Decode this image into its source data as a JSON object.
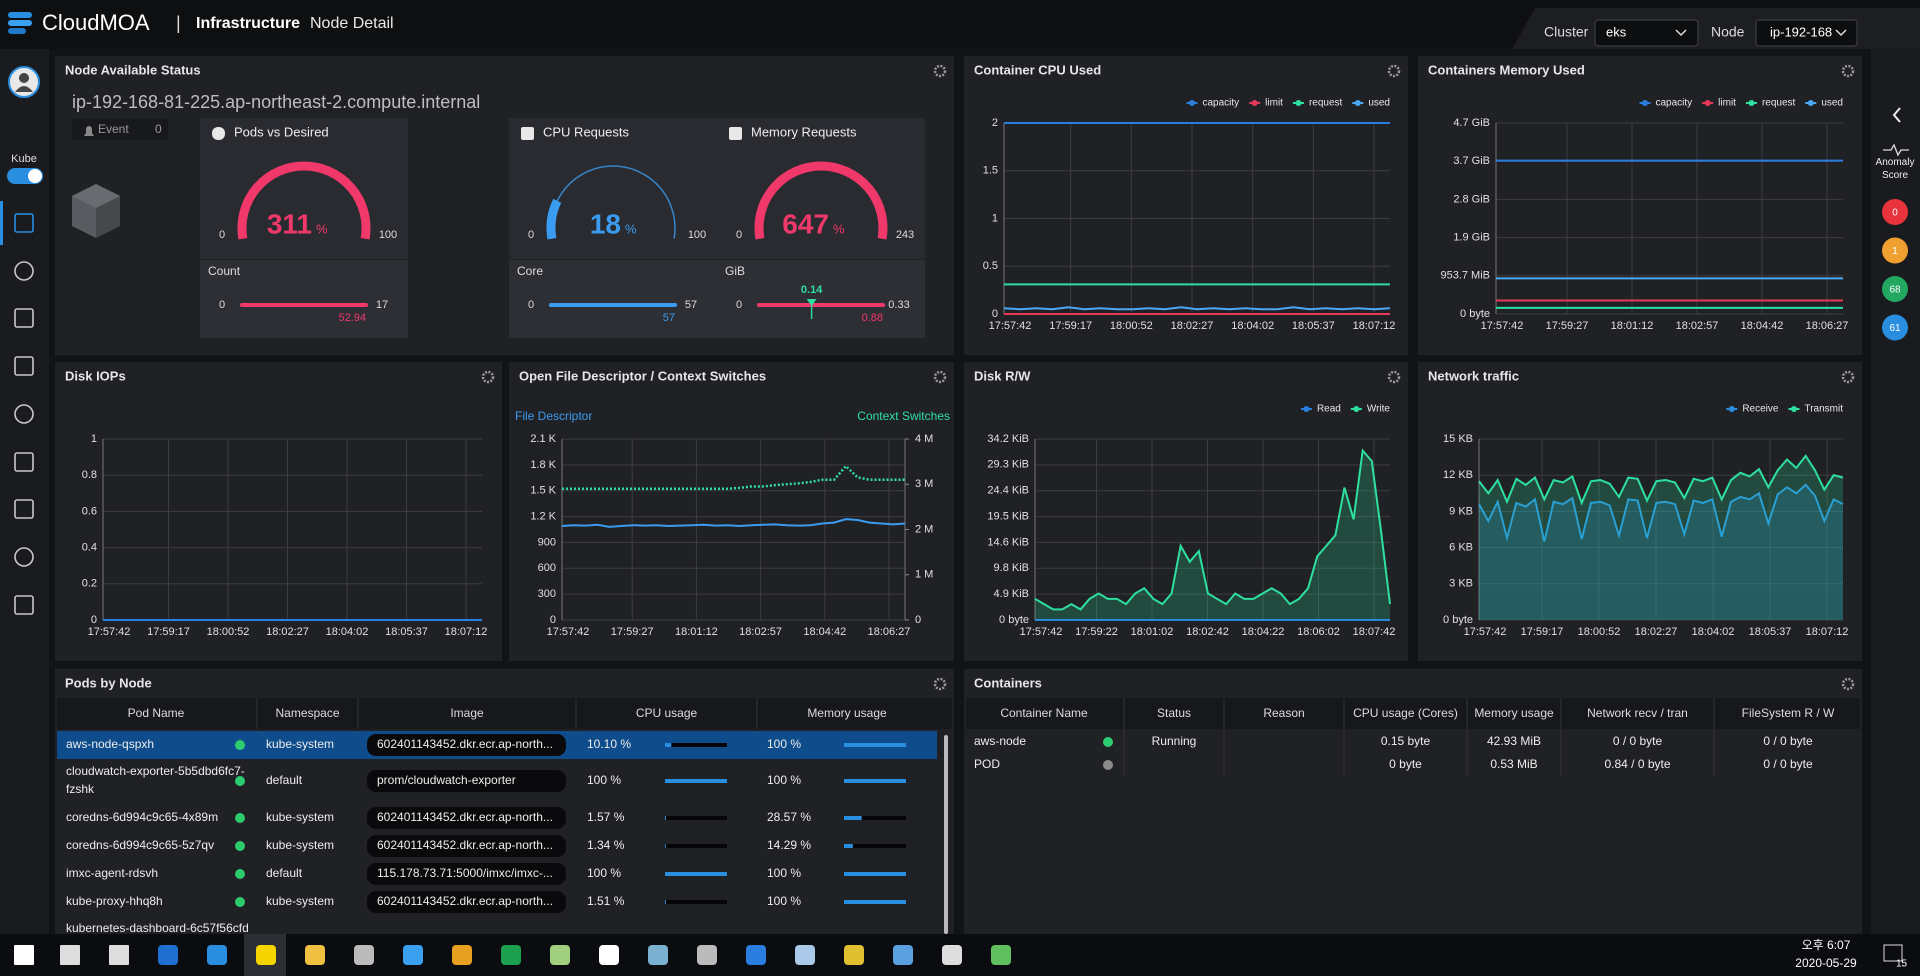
{
  "header": {
    "brand": "CloudMOA",
    "section": "Infrastructure",
    "page": "Node Detail",
    "cluster_label": "Cluster",
    "cluster": "eks",
    "node_label": "Node",
    "node": "ip-192-168"
  },
  "sidebar": {
    "toggle": "Kube"
  },
  "right_panel": {
    "label": "Anomaly Score",
    "scores": [
      {
        "value": 0,
        "color": "#e8323c"
      },
      {
        "value": 1,
        "color": "#f0a030"
      },
      {
        "value": 68,
        "color": "#22a860"
      },
      {
        "value": 61,
        "color": "#2a8ee0"
      }
    ]
  },
  "node_status": {
    "title": "Node Available Status",
    "hostname": "ip-192-168-81-225.ap-northeast-2.compute.internal",
    "event_label": "Event",
    "event_count": 0,
    "gauges": [
      {
        "title": "Pods vs Desired",
        "value": 311,
        "unit": "%",
        "min": 0,
        "max": 100,
        "sub_label": "Count",
        "bar_min": 0,
        "bar_max": 17,
        "bar_value": 52.94,
        "color": "#f0386b"
      },
      {
        "title": "CPU Requests",
        "value": 18,
        "unit": "%",
        "min": 0,
        "max": 100,
        "sub_label": "Core",
        "bar_min": 0,
        "bar_max": 57,
        "bar_value": 57,
        "color": "#3a9cf0"
      },
      {
        "title": "Memory Requests",
        "value": 647,
        "unit": "%",
        "min": 0,
        "max": 243,
        "sub_label": "GiB",
        "bar_min": 0,
        "bar_max": 0.33,
        "bar_value": 0.88,
        "marker": 0.14,
        "color": "#f0386b"
      }
    ]
  },
  "charts": [
    {
      "title": "Container CPU Used",
      "type": "line",
      "legend": "top-right",
      "x_labels": [
        "17:57:42",
        "17:59:17",
        "18:00:52",
        "18:02:27",
        "18:04:02",
        "18:05:37",
        "18:07:12"
      ],
      "ylim": [
        0,
        2
      ],
      "yticks": [
        0,
        0.5,
        1,
        1.5,
        2
      ],
      "grid": true,
      "series": [
        {
          "name": "capacity",
          "color": "#2a7ee0",
          "values": [
            2,
            2
          ]
        },
        {
          "name": "limit",
          "color": "#e8385a",
          "values": [
            0,
            0
          ]
        },
        {
          "name": "request",
          "color": "#2ee0a0",
          "values": [
            0.31,
            0.31
          ]
        },
        {
          "name": "used",
          "color": "#4aa8f5",
          "values": [
            0.06,
            0.05,
            0.06,
            0.05,
            0.07,
            0.05,
            0.06,
            0.05,
            0.05,
            0.06,
            0.05,
            0.07,
            0.05,
            0.06,
            0.05,
            0.06,
            0.05,
            0.05,
            0.07,
            0.05,
            0.06,
            0.05,
            0.06,
            0.05,
            0.06
          ]
        }
      ]
    },
    {
      "title": "Containers Memory Used",
      "type": "line",
      "legend": "top-right",
      "x_labels": [
        "17:57:42",
        "17:59:27",
        "18:01:12",
        "18:02:57",
        "18:04:42",
        "18:06:27"
      ],
      "ylim": [
        0,
        4768.4
      ],
      "yticks": [
        {
          "value": 0,
          "label": "0 byte"
        },
        {
          "value": 953.7,
          "label": "953.7 MiB"
        },
        {
          "value": 1907.3,
          "label": "1.9 GiB"
        },
        {
          "value": 2861,
          "label": "2.8 GiB"
        },
        {
          "value": 3814.7,
          "label": "3.7 GiB"
        },
        {
          "value": 4768.4,
          "label": "4.7 GiB"
        }
      ],
      "grid": true,
      "series": [
        {
          "name": "capacity",
          "color": "#2a7ee0",
          "values": [
            3830,
            3830
          ]
        },
        {
          "name": "limit",
          "color": "#e8385a",
          "values": [
            337,
            337
          ]
        },
        {
          "name": "request",
          "color": "#2ee0a0",
          "values": [
            153,
            153
          ]
        },
        {
          "name": "used",
          "color": "#4aa8f5",
          "values": [
            890,
            890
          ]
        }
      ]
    },
    {
      "title": "Disk IOPs",
      "type": "line",
      "x_labels": [
        "17:57:42",
        "17:59:17",
        "18:00:52",
        "18:02:27",
        "18:04:02",
        "18:05:37",
        "18:07:12"
      ],
      "ylim": [
        0,
        1
      ],
      "yticks": [
        0,
        0.2,
        0.4,
        0.6,
        0.8,
        1
      ],
      "grid": true,
      "series": [
        {
          "color": "#2a7ee0",
          "values": [
            0,
            0
          ]
        }
      ]
    },
    {
      "title": "Open File Descriptor / Context Switches",
      "type": "line",
      "legend": "axes",
      "x_labels": [
        "17:57:42",
        "17:59:27",
        "18:01:12",
        "18:02:57",
        "18:04:42",
        "18:06:27"
      ],
      "ylim": [
        0,
        2100
      ],
      "yticks": [
        0,
        300,
        600,
        900,
        {
          "value": 1200,
          "label": "1.2 K"
        },
        {
          "value": 1500,
          "label": "1.5 K"
        },
        {
          "value": 1800,
          "label": "1.8 K"
        },
        {
          "value": 2100,
          "label": "2.1 K"
        }
      ],
      "y2lim": [
        0,
        4000000
      ],
      "y2ticks": [
        0,
        {
          "value": 1000000,
          "label": "1 M"
        },
        {
          "value": 2000000,
          "label": "2 M"
        },
        {
          "value": 3000000,
          "label": "3 M"
        },
        {
          "value": 4000000,
          "label": "4 M"
        }
      ],
      "grid": true,
      "series": [
        {
          "name": "File Descriptor",
          "color": "#3a9cf0",
          "values": [
            1090,
            1100,
            1095,
            1105,
            1080,
            1090,
            1100,
            1095,
            1100,
            1090,
            1095,
            1100,
            1105,
            1095,
            1100,
            1090,
            1100,
            1105,
            1110,
            1100,
            1095,
            1100,
            1120,
            1130,
            1170,
            1160,
            1130,
            1120,
            1110,
            1120
          ]
        },
        {
          "name": "Context Switches",
          "color": "#2ee0a0",
          "axis": "y2",
          "style": "dotted",
          "values": [
            2900000,
            2900000,
            2900000,
            2900000,
            2900000,
            2900000,
            2900000,
            2900000,
            2900000,
            2900000,
            2900000,
            2900000,
            2900000,
            2900000,
            2900000,
            2920000,
            2950000,
            2950000,
            2980000,
            3000000,
            3020000,
            3050000,
            3100000,
            3100000,
            3400000,
            3150000,
            3100000,
            3100000,
            3100000,
            3100000
          ]
        }
      ]
    },
    {
      "title": "Disk R/W",
      "type": "line",
      "legend": "top-right",
      "area": true,
      "x_labels": [
        "17:57:42",
        "17:59:22",
        "18:01:02",
        "18:02:42",
        "18:04:22",
        "18:06:02",
        "18:07:42"
      ],
      "ylim": [
        0,
        34.18
      ],
      "yticks": [
        {
          "value": 0,
          "label": "0 byte"
        },
        {
          "value": 4.88,
          "label": "4.9 KiB"
        },
        {
          "value": 9.77,
          "label": "9.8 KiB"
        },
        {
          "value": 14.65,
          "label": "14.6 KiB"
        },
        {
          "value": 19.53,
          "label": "19.5 KiB"
        },
        {
          "value": 24.41,
          "label": "24.4 KiB"
        },
        {
          "value": 29.3,
          "label": "29.3 KiB"
        },
        {
          "value": 34.18,
          "label": "34.2 KiB"
        }
      ],
      "grid": true,
      "series": [
        {
          "name": "Read",
          "color": "#2a7ee0",
          "values": [
            0,
            0
          ]
        },
        {
          "name": "Write",
          "color": "#2ee0a0",
          "values": [
            4,
            3,
            2,
            2,
            3,
            2,
            4,
            5,
            4,
            4,
            3,
            5,
            6,
            4,
            3,
            5,
            14,
            11,
            13,
            5,
            4,
            3,
            5,
            4,
            4,
            5,
            6,
            5,
            3,
            4,
            6,
            12,
            14,
            16,
            25,
            19,
            32,
            30,
            17,
            3
          ]
        }
      ]
    },
    {
      "title": "Network traffic",
      "type": "line",
      "legend": "top-right",
      "area": true,
      "x_labels": [
        "17:57:42",
        "17:59:17",
        "18:00:52",
        "18:02:27",
        "18:04:02",
        "18:05:37",
        "18:07:12"
      ],
      "ylim": [
        0,
        15
      ],
      "yticks": [
        {
          "value": 0,
          "label": "0 byte"
        },
        {
          "value": 3,
          "label": "3 KB"
        },
        {
          "value": 6,
          "label": "6 KB"
        },
        {
          "value": 9,
          "label": "9 KB"
        },
        {
          "value": 12,
          "label": "12 KB"
        },
        {
          "value": 15,
          "label": "15 KB"
        }
      ],
      "grid": true,
      "series": [
        {
          "name": "Receive",
          "color": "#2a8ee0",
          "values": [
            9.6,
            8.2,
            9.8,
            6.8,
            9.7,
            9.4,
            10,
            6.5,
            9.8,
            9.6,
            10.1,
            6.7,
            9.7,
            9.8,
            9.5,
            7,
            10,
            9.9,
            6.8,
            9.7,
            9.8,
            9.6,
            7.1,
            9.9,
            9.7,
            10,
            6.9,
            9.8,
            10.2,
            10,
            10.5,
            8,
            10.4,
            11,
            10.5,
            11.2,
            10.3,
            8.2,
            10,
            9.6
          ]
        },
        {
          "name": "Transmit",
          "color": "#2ee0a0",
          "values": [
            11.5,
            10.5,
            11.6,
            9.8,
            11.7,
            11.2,
            11.8,
            10,
            11.6,
            11.4,
            11.9,
            9.7,
            11.5,
            11.6,
            11.3,
            10.2,
            11.8,
            11.7,
            9.9,
            11.5,
            11.6,
            11.4,
            10.1,
            11.7,
            11.5,
            11.8,
            10,
            11.6,
            12.2,
            11.9,
            12.5,
            11,
            12.4,
            13.3,
            12.6,
            13.6,
            12.4,
            10.8,
            12,
            11.8
          ]
        }
      ]
    }
  ],
  "pods": {
    "title": "Pods by Node",
    "columns": [
      "Pod Name",
      "Namespace",
      "Image",
      "CPU usage",
      "Memory usage"
    ],
    "rows": [
      {
        "name": "aws-node-qspxh",
        "namespace": "kube-system",
        "image": "602401143452.dkr.ecr.ap-north...",
        "cpu": {
          "value": 10.1,
          "label": "10.10 %"
        },
        "memory": {
          "value": 100,
          "label": "100 %"
        },
        "selected": true,
        "dot": "#2ecc71"
      },
      {
        "name": "cloudwatch-exporter-5b5dbd6fc7-fzshk",
        "namespace": "default",
        "image": "prom/cloudwatch-exporter",
        "cpu": {
          "value": 100,
          "label": "100 %"
        },
        "memory": {
          "value": 100,
          "label": "100 %"
        },
        "dot": "#2ecc71"
      },
      {
        "name": "coredns-6d994c9c65-4x89m",
        "namespace": "kube-system",
        "image": "602401143452.dkr.ecr.ap-north...",
        "cpu": {
          "value": 1.57,
          "label": "1.57 %"
        },
        "memory": {
          "value": 28.57,
          "label": "28.57 %"
        },
        "dot": "#2ecc71"
      },
      {
        "name": "coredns-6d994c9c65-5z7qv",
        "namespace": "kube-system",
        "image": "602401143452.dkr.ecr.ap-north...",
        "cpu": {
          "value": 1.34,
          "label": "1.34 %"
        },
        "memory": {
          "value": 14.29,
          "label": "14.29 %"
        },
        "dot": "#2ecc71"
      },
      {
        "name": "imxc-agent-rdsvh",
        "namespace": "default",
        "image": "115.178.73.71:5000/imxc/imxc-...",
        "cpu": {
          "value": 100,
          "label": "100 %"
        },
        "memory": {
          "value": 100,
          "label": "100 %"
        },
        "dot": "#2ecc71"
      },
      {
        "name": "kube-proxy-hhq8h",
        "namespace": "kube-system",
        "image": "602401143452.dkr.ecr.ap-north...",
        "cpu": {
          "value": 1.51,
          "label": "1.51 %"
        },
        "memory": {
          "value": 100,
          "label": "100 %"
        },
        "dot": "#2ecc71"
      },
      {
        "name": "kubernetes-dashboard-6c57f56cfd"
      }
    ]
  },
  "containers": {
    "title": "Containers",
    "columns": [
      "Container Name",
      "Status",
      "Reason",
      "CPU usage (Cores)",
      "Memory usage",
      "Network recv / tran",
      "FileSystem R / W"
    ],
    "rows": [
      {
        "name": "aws-node",
        "status": "Running",
        "cpu": "0.15 byte",
        "memory": "42.93 MiB",
        "network": "0 / 0 byte",
        "filesystem": "0 / 0 byte",
        "dot": "#2ecc71"
      },
      {
        "name": "POD",
        "cpu": "0 byte",
        "memory": "0.53 MiB",
        "network": "0.84 / 0 byte",
        "filesystem": "0 / 0 byte",
        "dot": "#8a8a8a"
      }
    ]
  },
  "taskbar": {
    "time": "오후 6:07",
    "date": "2020-05-29",
    "notifications": 15
  }
}
